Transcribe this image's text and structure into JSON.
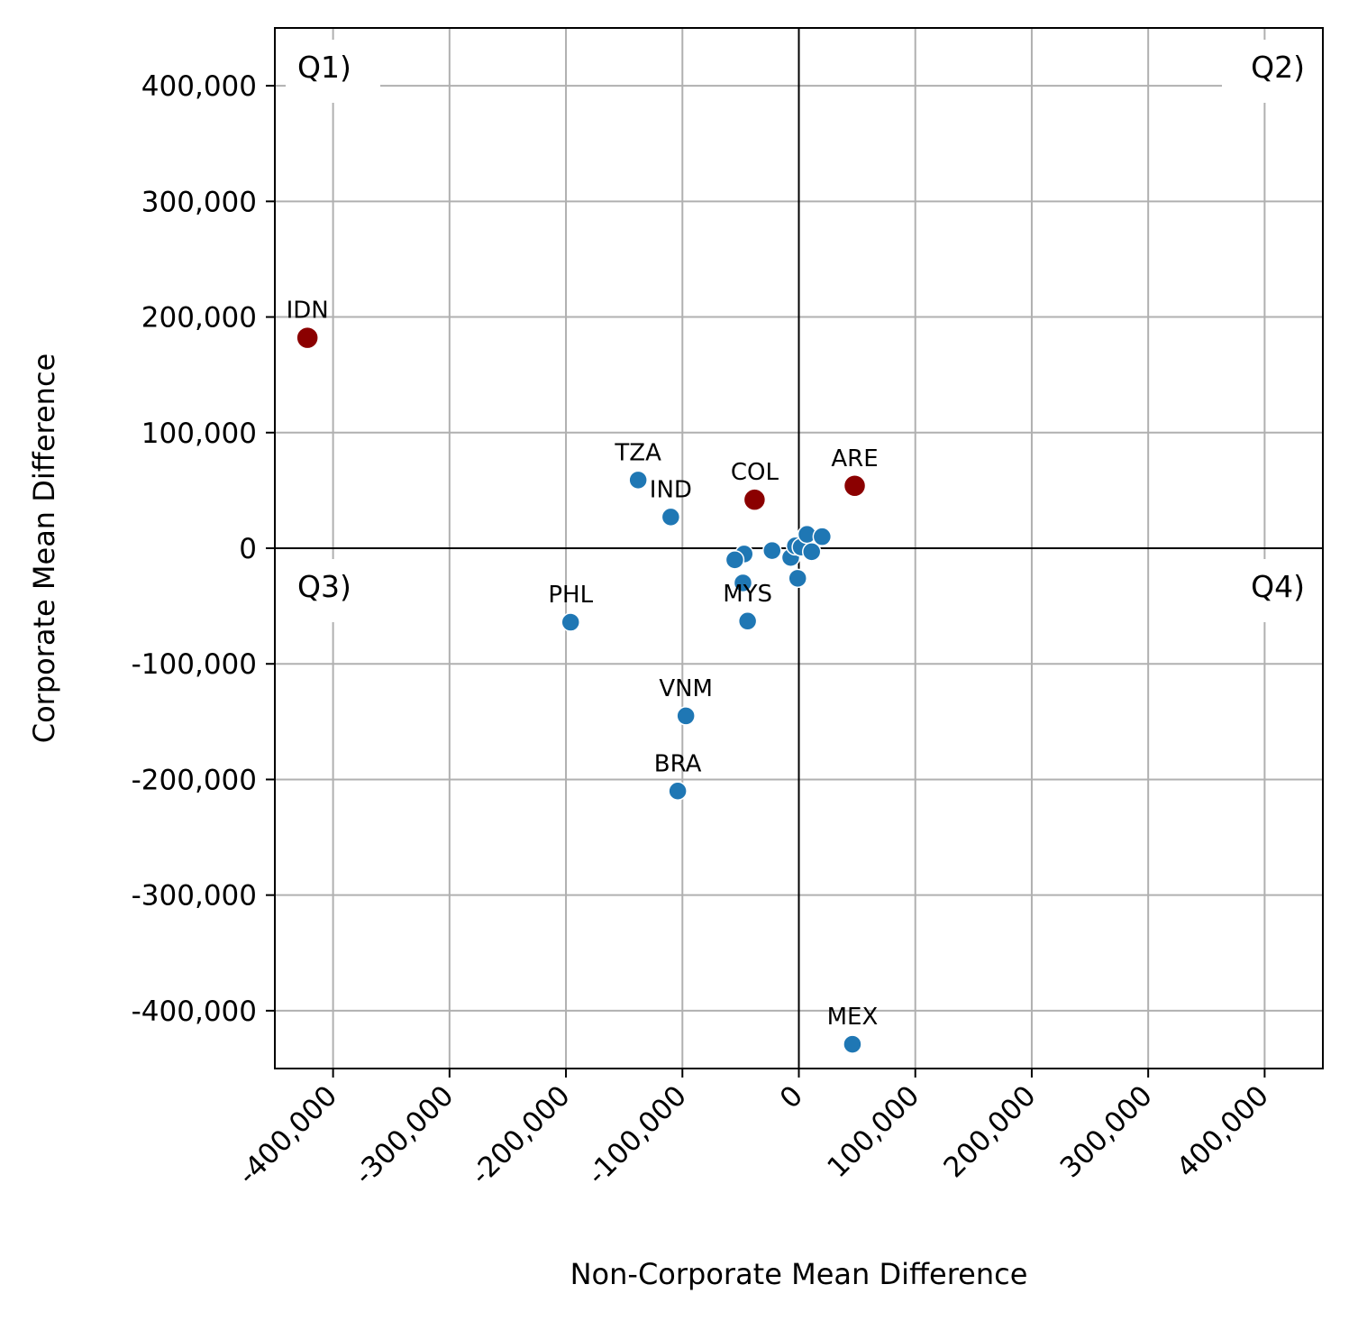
{
  "chart_data": {
    "type": "scatter",
    "xlabel": "Non-Corporate Mean Difference",
    "ylabel": "Corporate Mean Difference",
    "xlim": [
      -450000,
      450000
    ],
    "ylim": [
      -450000,
      450000
    ],
    "xticks": [
      -400000,
      -300000,
      -200000,
      -100000,
      0,
      100000,
      200000,
      300000,
      400000
    ],
    "yticks": [
      -400000,
      -300000,
      -200000,
      -100000,
      0,
      100000,
      200000,
      300000,
      400000
    ],
    "xtick_labels": [
      "-400,000",
      "-300,000",
      "-200,000",
      "-100,000",
      "0",
      "100,000",
      "200,000",
      "300,000",
      "400,000"
    ],
    "ytick_labels": [
      "-400,000",
      "-300,000",
      "-200,000",
      "-100,000",
      "0",
      "100,000",
      "200,000",
      "300,000",
      "400,000"
    ],
    "grid": true,
    "quadrant_labels": [
      "Q1)",
      "Q2)",
      "Q3)",
      "Q4)"
    ],
    "colors": {
      "highlight": "#8b0000",
      "default": "#1f77b4",
      "grid": "#b0b0b0"
    },
    "points": [
      {
        "label": "IDN",
        "x": -422000,
        "y": 182000,
        "highlight": true
      },
      {
        "label": "COL",
        "x": -38000,
        "y": 42000,
        "highlight": true
      },
      {
        "label": "ARE",
        "x": 48000,
        "y": 54000,
        "highlight": true
      },
      {
        "label": "TZA",
        "x": -138000,
        "y": 59000,
        "highlight": false
      },
      {
        "label": "IND",
        "x": -110000,
        "y": 27000,
        "highlight": false
      },
      {
        "label": "PHL",
        "x": -196000,
        "y": -64000,
        "highlight": false
      },
      {
        "label": "MYS",
        "x": -44000,
        "y": -63000,
        "highlight": false
      },
      {
        "label": "VNM",
        "x": -97000,
        "y": -145000,
        "highlight": false
      },
      {
        "label": "BRA",
        "x": -104000,
        "y": -210000,
        "highlight": false
      },
      {
        "label": "MEX",
        "x": 46000,
        "y": -429000,
        "highlight": false
      },
      {
        "label": "",
        "x": -47000,
        "y": -5000,
        "highlight": false
      },
      {
        "label": "",
        "x": -55000,
        "y": -10000,
        "highlight": false
      },
      {
        "label": "",
        "x": -48000,
        "y": -30000,
        "highlight": false
      },
      {
        "label": "",
        "x": -23000,
        "y": -2000,
        "highlight": false
      },
      {
        "label": "",
        "x": -7000,
        "y": -8000,
        "highlight": false
      },
      {
        "label": "",
        "x": -3000,
        "y": 2000,
        "highlight": false
      },
      {
        "label": "",
        "x": 2000,
        "y": 1000,
        "highlight": false
      },
      {
        "label": "",
        "x": 7000,
        "y": 12000,
        "highlight": false
      },
      {
        "label": "",
        "x": 11000,
        "y": -3000,
        "highlight": false
      },
      {
        "label": "",
        "x": 20000,
        "y": 10000,
        "highlight": false
      },
      {
        "label": "",
        "x": -1000,
        "y": -26000,
        "highlight": false
      }
    ]
  }
}
